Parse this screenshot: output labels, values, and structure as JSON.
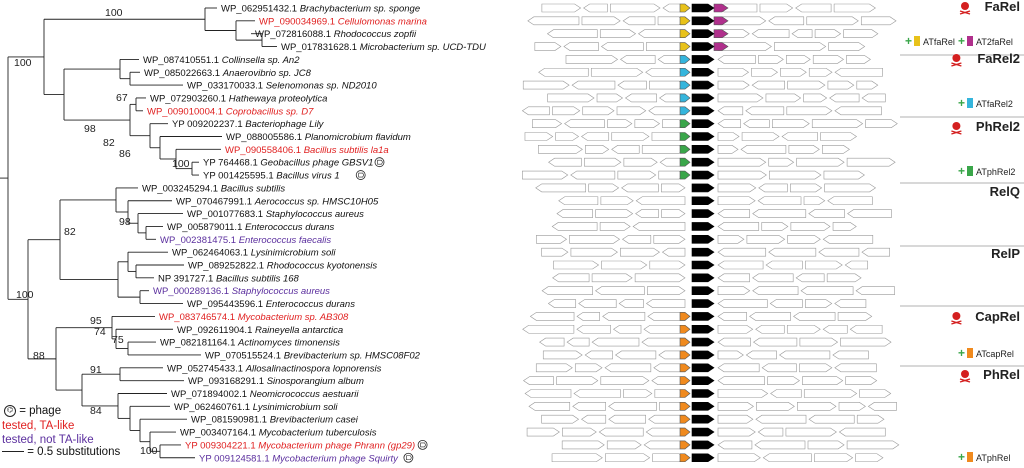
{
  "leaves": [
    {
      "acc": "WP_062951432.1",
      "sp": "Brachybacterium sp. sponge",
      "st": "untested"
    },
    {
      "acc": "WP_090034969.1",
      "sp": "Cellulomonas marina",
      "st": "ta"
    },
    {
      "acc": "WP_072816088.1",
      "sp": "Rhodococcus zopfii",
      "st": "untested"
    },
    {
      "acc": "WP_017831628.1",
      "sp": "Microbacterium sp. UCD-TDU",
      "st": "untested"
    },
    {
      "acc": "WP_087410551.1",
      "sp": "Collinsella sp. An2",
      "st": "untested"
    },
    {
      "acc": "WP_085022663.1",
      "sp": "Anaerovibrio sp. JC8",
      "st": "untested"
    },
    {
      "acc": "WP_033170033.1",
      "sp": "Selenomonas sp. ND2010",
      "st": "untested"
    },
    {
      "acc": "WP_072903260.1",
      "sp": "Hathewaya proteolytica",
      "st": "untested"
    },
    {
      "acc": "WP_009010004.1",
      "sp": "Coprobacillus sp. D7",
      "st": "ta"
    },
    {
      "acc": "YP 009202237.1",
      "sp": "Bacteriophage Lily",
      "st": "untested",
      "plain": true
    },
    {
      "acc": "WP_088005586.1",
      "sp": "Planomicrobium flavidum",
      "st": "untested"
    },
    {
      "acc": "WP_090558406.1",
      "sp": "Bacillus subtilis la1a",
      "st": "ta"
    },
    {
      "acc": "YP 764468.1",
      "sp": "Geobacillus phage GBSV1",
      "st": "untested",
      "phage": true,
      "plain": true
    },
    {
      "acc": "YP 001425595.1",
      "sp": "Bacillus virus 1",
      "st": "untested",
      "phage": true,
      "plain": true
    },
    {
      "acc": "WP_003245294.1",
      "sp": "Bacillus subtilis",
      "st": "untested"
    },
    {
      "acc": "WP_070467991.1",
      "sp": "Aerococcus sp. HMSC10H05",
      "st": "untested"
    },
    {
      "acc": "WP_001077683.1",
      "sp": "Staphylococcus aureus",
      "st": "untested"
    },
    {
      "acc": "WP_005879011.1",
      "sp": "Enterococcus durans",
      "st": "untested"
    },
    {
      "acc": "WP_002381475.1",
      "sp": "Enterococcus faecalis",
      "st": "notta"
    },
    {
      "acc": "WP_062464063.1",
      "sp": "Lysinimicrobium soli",
      "st": "untested"
    },
    {
      "acc": "WP_089252822.1",
      "sp": "Rhodococcus kyotonensis",
      "st": "untested"
    },
    {
      "acc": "NP 391727.1",
      "sp": "Bacillus subtilis 168",
      "st": "untested",
      "plain": true
    },
    {
      "acc": "WP_000289136.1",
      "sp": "Staphylococcus aureus",
      "st": "notta"
    },
    {
      "acc": "WP_095443596.1",
      "sp": "Enterococcus durans",
      "st": "untested"
    },
    {
      "acc": "WP_083746574.1",
      "sp": "Mycobacterium sp. AB308",
      "st": "ta"
    },
    {
      "acc": "WP_092611904.1",
      "sp": "Raineyella antarctica",
      "st": "untested"
    },
    {
      "acc": "WP_082181164.1",
      "sp": "Actinomyces timonensis",
      "st": "untested"
    },
    {
      "acc": "WP_070515524.1",
      "sp": "Brevibacterium sp. HMSC08F02",
      "st": "untested"
    },
    {
      "acc": "WP_052745433.1",
      "sp": "Allosalinactinospora lopnorensis",
      "st": "untested"
    },
    {
      "acc": "WP_093168291.1",
      "sp": "Sinosporangium album",
      "st": "untested"
    },
    {
      "acc": "WP_071894002.1",
      "sp": "Neomicrococcus aestuarii",
      "st": "untested"
    },
    {
      "acc": "WP_062460761.1",
      "sp": "Lysinimicrobium soli",
      "st": "untested"
    },
    {
      "acc": "WP_081590981.1",
      "sp": "Brevibacterium casei",
      "st": "untested"
    },
    {
      "acc": "WP_003407164.1",
      "sp": "Mycobacterium tuberculosis",
      "st": "untested"
    },
    {
      "acc": "YP 009304221.1",
      "sp": "Mycobacterium phage Phrann (gp29)",
      "st": "ta",
      "phage": true,
      "plain": true
    },
    {
      "acc": "YP 009124581.1",
      "sp": "Mycobacterium phage Squirty",
      "st": "notta",
      "phage": true,
      "plain": true
    }
  ],
  "bootstraps": [
    "100",
    "100",
    "67",
    "98",
    "82",
    "86",
    "100",
    "82",
    "98",
    "100",
    "95",
    "74",
    "75",
    "88",
    "91",
    "84",
    "100"
  ],
  "families": [
    {
      "name": "FaRel",
      "toxin": true
    },
    {
      "name": "FaRel2",
      "toxin": true
    },
    {
      "name": "PhRel2",
      "toxin": true
    },
    {
      "name": "RelQ",
      "toxin": false
    },
    {
      "name": "RelP",
      "toxin": false
    },
    {
      "name": "CapRel",
      "toxin": true
    },
    {
      "name": "PhRel",
      "toxin": true
    }
  ],
  "antitoxins": [
    {
      "label": "ATfaRel",
      "color": "#e8c21a"
    },
    {
      "label": "AT2faRel",
      "color": "#b0308c"
    },
    {
      "label": "ATfaRel2",
      "color": "#35b5dc"
    },
    {
      "label": "ATphRel2",
      "color": "#3aa64a"
    },
    {
      "label": "ATcapRel",
      "color": "#f08a1e"
    },
    {
      "label": "ATphRel",
      "color": "#f08a1e"
    }
  ],
  "legend": {
    "phage": "= phage",
    "ta": "tested, TA-like",
    "notta": "tested, not TA-like",
    "scale": "= 0.5 substitutions"
  },
  "colors": {
    "ta": "#e02020",
    "notta": "#5b2f9e",
    "untested": "#111111",
    "center_gene": "#000000"
  }
}
